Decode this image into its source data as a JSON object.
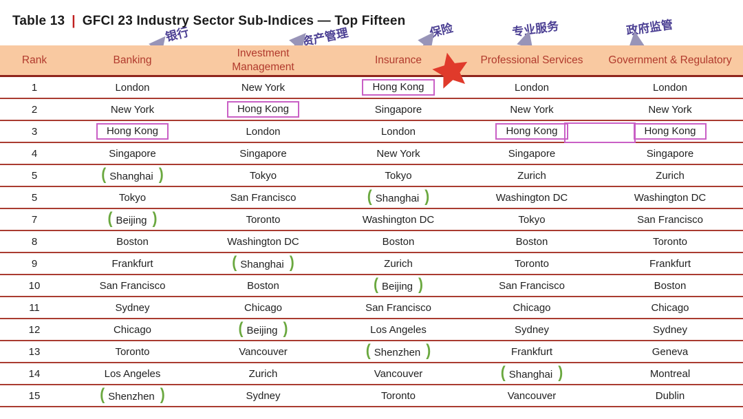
{
  "title": {
    "label": "Table 13",
    "separator": "|",
    "text": "GFCI 23 Industry Sector Sub-Indices — Top Fifteen"
  },
  "annotations": {
    "chinese_labels": [
      {
        "text": "银行",
        "column": "Banking"
      },
      {
        "text": "资产管理",
        "column": "Investment Management"
      },
      {
        "text": "保险",
        "column": "Insurance"
      },
      {
        "text": "专业服务",
        "column": "Professional Services"
      },
      {
        "text": "政府监管",
        "column": "Government & Regulatory"
      }
    ],
    "star_icon": "red-star",
    "highlight_note": "magenta boxes mark Hong Kong; green brackets mark mainland-China cities"
  },
  "colors": {
    "header_bg": "#f9c9a1",
    "header_text": "#b13a2d",
    "grid_line": "#a93b30",
    "highlight_box": "#c95fc5",
    "bracket_green": "#6aa83f",
    "star_red": "#e03a2b",
    "annotation_purple": "#4b3f93",
    "title_pipe_red": "#c01f1f"
  },
  "table": {
    "columns": [
      "Rank",
      "Banking",
      "Investment\nManagement",
      "Insurance",
      "Professional Services",
      "Government & Regulatory"
    ],
    "rows": [
      {
        "rank": "1",
        "cells": [
          {
            "text": "London"
          },
          {
            "text": "New York"
          },
          {
            "text": "Hong Kong",
            "mark": "box"
          },
          {
            "text": "London"
          },
          {
            "text": "London"
          }
        ]
      },
      {
        "rank": "2",
        "cells": [
          {
            "text": "New York"
          },
          {
            "text": "Hong Kong",
            "mark": "box"
          },
          {
            "text": "Singapore"
          },
          {
            "text": "New York"
          },
          {
            "text": "New York"
          }
        ]
      },
      {
        "rank": "3",
        "cells": [
          {
            "text": "Hong Kong",
            "mark": "box"
          },
          {
            "text": "London"
          },
          {
            "text": "London"
          },
          {
            "text": "Hong Kong",
            "mark": "box"
          },
          {
            "text": "Hong Kong",
            "mark": "box"
          }
        ]
      },
      {
        "rank": "4",
        "cells": [
          {
            "text": "Singapore"
          },
          {
            "text": "Singapore"
          },
          {
            "text": "New York"
          },
          {
            "text": "Singapore"
          },
          {
            "text": "Singapore"
          }
        ]
      },
      {
        "rank": "5",
        "cells": [
          {
            "text": "Shanghai",
            "mark": "brackets"
          },
          {
            "text": "Tokyo"
          },
          {
            "text": "Tokyo"
          },
          {
            "text": "Zurich"
          },
          {
            "text": "Zurich"
          }
        ]
      },
      {
        "rank": "5",
        "cells": [
          {
            "text": "Tokyo"
          },
          {
            "text": "San Francisco"
          },
          {
            "text": "Shanghai",
            "mark": "brackets"
          },
          {
            "text": "Washington DC"
          },
          {
            "text": "Washington DC"
          }
        ]
      },
      {
        "rank": "7",
        "cells": [
          {
            "text": "Beijing",
            "mark": "brackets"
          },
          {
            "text": "Toronto"
          },
          {
            "text": "Washington DC"
          },
          {
            "text": "Tokyo"
          },
          {
            "text": "San Francisco"
          }
        ]
      },
      {
        "rank": "8",
        "cells": [
          {
            "text": "Boston"
          },
          {
            "text": "Washington DC"
          },
          {
            "text": "Boston"
          },
          {
            "text": "Boston"
          },
          {
            "text": "Toronto"
          }
        ]
      },
      {
        "rank": "9",
        "cells": [
          {
            "text": "Frankfurt"
          },
          {
            "text": "Shanghai",
            "mark": "brackets"
          },
          {
            "text": "Zurich"
          },
          {
            "text": "Toronto"
          },
          {
            "text": "Frankfurt"
          }
        ]
      },
      {
        "rank": "10",
        "cells": [
          {
            "text": "San Francisco"
          },
          {
            "text": "Boston"
          },
          {
            "text": "Beijing",
            "mark": "brackets"
          },
          {
            "text": "San Francisco"
          },
          {
            "text": "Boston"
          }
        ]
      },
      {
        "rank": "11",
        "cells": [
          {
            "text": "Sydney"
          },
          {
            "text": "Chicago"
          },
          {
            "text": "San Francisco"
          },
          {
            "text": "Chicago"
          },
          {
            "text": "Chicago"
          }
        ]
      },
      {
        "rank": "12",
        "cells": [
          {
            "text": "Chicago"
          },
          {
            "text": "Beijing",
            "mark": "brackets"
          },
          {
            "text": "Los Angeles"
          },
          {
            "text": "Sydney"
          },
          {
            "text": "Sydney"
          }
        ]
      },
      {
        "rank": "13",
        "cells": [
          {
            "text": "Toronto"
          },
          {
            "text": "Vancouver"
          },
          {
            "text": "Shenzhen",
            "mark": "brackets"
          },
          {
            "text": "Frankfurt"
          },
          {
            "text": "Geneva"
          }
        ]
      },
      {
        "rank": "14",
        "cells": [
          {
            "text": "Los Angeles"
          },
          {
            "text": "Zurich"
          },
          {
            "text": "Vancouver"
          },
          {
            "text": "Shanghai",
            "mark": "brackets"
          },
          {
            "text": "Montreal"
          }
        ]
      },
      {
        "rank": "15",
        "cells": [
          {
            "text": "Shenzhen",
            "mark": "brackets"
          },
          {
            "text": "Sydney"
          },
          {
            "text": "Toronto"
          },
          {
            "text": "Vancouver"
          },
          {
            "text": "Dublin"
          }
        ]
      }
    ]
  }
}
